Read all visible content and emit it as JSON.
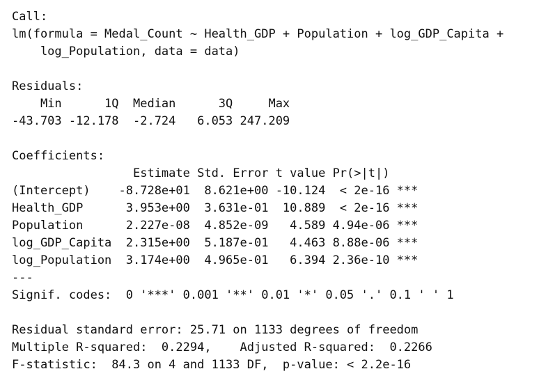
{
  "call": {
    "label": "Call:",
    "lines": [
      "lm(formula = Medal_Count ~ Health_GDP + Population + log_GDP_Capita +",
      "    log_Population, data = data)"
    ]
  },
  "residuals": {
    "label": "Residuals:",
    "lines": [
      "    Min      1Q  Median      3Q     Max",
      "-43.703 -12.178  -2.724   6.053 247.209"
    ]
  },
  "coefficients": {
    "label": "Coefficients:",
    "lines": [
      "                 Estimate Std. Error t value Pr(>|t|)",
      "(Intercept)    -8.728e+01  8.621e+00 -10.124  < 2e-16 ***",
      "Health_GDP      3.953e+00  3.631e-01  10.889  < 2e-16 ***",
      "Population      2.227e-08  4.852e-09   4.589 4.94e-06 ***",
      "log_GDP_Capita  2.315e+00  5.187e-01   4.463 8.88e-06 ***",
      "log_Population  3.174e+00  4.965e-01   6.394 2.36e-10 ***",
      "---",
      "Signif. codes:  0 '***' 0.001 '**' 0.01 '*' 0.05 '.' 0.1 ' ' 1"
    ]
  },
  "summary": {
    "lines": [
      "Residual standard error: 25.71 on 1133 degrees of freedom",
      "Multiple R-squared:  0.2294,    Adjusted R-squared:  0.2266",
      "F-statistic:  84.3 on 4 and 1133 DF,  p-value: < 2.2e-16"
    ]
  }
}
